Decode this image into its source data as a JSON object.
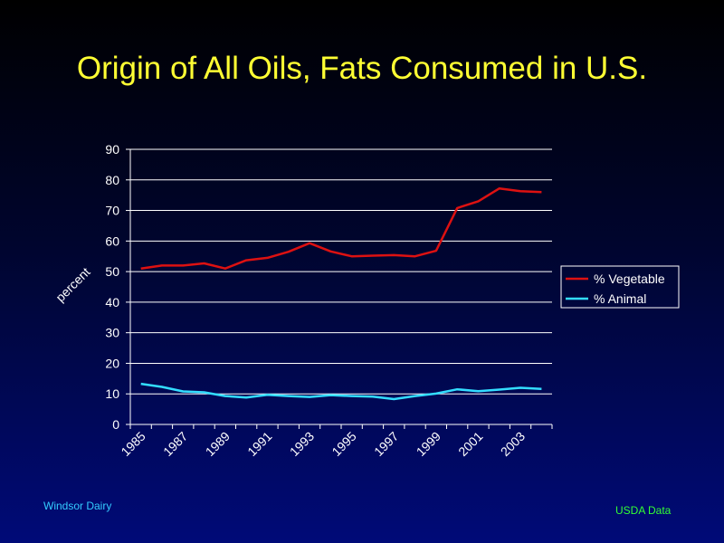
{
  "title": "Origin of All Oils, Fats Consumed in U.S.",
  "footer": {
    "left": "Windsor  Dairy",
    "right": "USDA  Data"
  },
  "colors": {
    "title": "#ffff33",
    "vegetable": "#dd1111",
    "animal": "#33ddff",
    "axis": "#ffffff"
  },
  "chart_data": {
    "type": "line",
    "title": "Origin of All Oils, Fats Consumed in U.S.",
    "xlabel": "",
    "ylabel": "percent",
    "ylim": [
      0,
      90
    ],
    "yticks": [
      0,
      10,
      20,
      30,
      40,
      50,
      60,
      70,
      80,
      90
    ],
    "x": [
      1985,
      1986,
      1987,
      1988,
      1989,
      1990,
      1991,
      1992,
      1993,
      1994,
      1995,
      1996,
      1997,
      1998,
      1999,
      2000,
      2001,
      2002,
      2003,
      2004
    ],
    "xtick_labels": [
      "1985",
      "1987",
      "1989",
      "1991",
      "1993",
      "1995",
      "1997",
      "1999",
      "2001",
      "2003"
    ],
    "grid": true,
    "legend_position": "right",
    "series": [
      {
        "name": "% Vegetable",
        "color": "#dd1111",
        "values": [
          51,
          52,
          52,
          52.7,
          51,
          53.7,
          54.5,
          56.5,
          59.3,
          56.6,
          55,
          55.2,
          55.4,
          55,
          56.8,
          70.8,
          73,
          77.2,
          76.3,
          76
        ]
      },
      {
        "name": "% Animal",
        "color": "#33ddff",
        "values": [
          13.3,
          12.3,
          10.8,
          10.5,
          9.3,
          8.8,
          9.7,
          9.3,
          9,
          9.6,
          9.3,
          9.1,
          8.3,
          9.3,
          10.1,
          11.5,
          10.9,
          11.4,
          12,
          11.6
        ]
      }
    ]
  }
}
